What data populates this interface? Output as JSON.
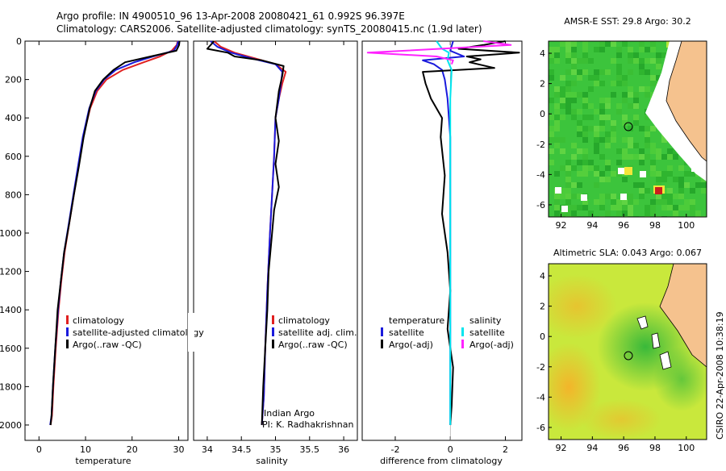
{
  "header": {
    "line1": "Argo profile: IN 4900510_96 13-Apr-2008 20080421_61 0.992S 96.397E",
    "line2": "Climatology: CARS2006. Satellite-adjusted climatology: synTS_20080415.nc (1.9d later)"
  },
  "side_label": "CSIRO 22-Apr-2008 10:38:19",
  "colors": {
    "climatology": "#e02020",
    "satellite": "#1a1adc",
    "argo": "#000000",
    "satellite_diff": "#00e5ee",
    "argo_sal_diff": "#ff22ff",
    "land": "#f5c28e"
  },
  "panels": {
    "temperature": {
      "xlabel": "temperature",
      "legend": [
        "climatology",
        "satellite-adjusted climatology",
        "Argo(..raw -QC)"
      ]
    },
    "salinity": {
      "xlabel": "salinity",
      "legend": [
        "climatology",
        "satellite adj. clim.",
        "Argo(..raw -QC)"
      ],
      "annotation1": "Indian Argo",
      "annotation2": "PI: K. Radhakrishnan"
    },
    "difference": {
      "xlabel": "difference from climatology",
      "legend_temp_title": "temperature",
      "legend_temp": [
        "satellite",
        "Argo(-adj)"
      ],
      "legend_sal_title": "salinity",
      "legend_sal": [
        "satellite",
        "Argo(-adj)"
      ]
    },
    "sst_map": {
      "title": "AMSR-E SST: 29.8 Argo: 30.2"
    },
    "sla_map": {
      "title": "Altimetric SLA: 0.043 Argo: 0.067"
    }
  },
  "chart_data": [
    {
      "type": "line",
      "name": "temperature-profile",
      "xlabel": "temperature",
      "ylabel": "",
      "xlim": [
        -3,
        32
      ],
      "ylim": [
        2080,
        0
      ],
      "xticks": [
        0,
        10,
        20,
        30
      ],
      "yticks": [
        0,
        200,
        400,
        600,
        800,
        1000,
        1200,
        1400,
        1600,
        1800,
        2000
      ],
      "series": [
        {
          "name": "climatology",
          "color": "#e02020",
          "x": [
            29.8,
            29.6,
            28.5,
            26.0,
            22.5,
            18.0,
            14.5,
            12.5,
            11.0,
            9.5,
            8.5,
            7.5,
            6.5,
            5.5,
            4.8,
            4.2,
            3.6,
            3.1,
            2.8,
            2.5
          ],
          "y": [
            0,
            20,
            50,
            80,
            110,
            150,
            200,
            260,
            350,
            500,
            650,
            800,
            950,
            1100,
            1250,
            1400,
            1600,
            1800,
            1950,
            2000
          ]
        },
        {
          "name": "satellite-adjusted climatology",
          "color": "#1a1adc",
          "x": [
            29.9,
            29.7,
            29.0,
            24.5,
            20.5,
            16.5,
            14.0,
            12.2,
            10.8,
            9.4,
            8.4,
            7.4,
            6.4,
            5.4,
            4.7,
            4.1,
            3.5,
            3.0,
            2.7,
            2.4
          ],
          "y": [
            0,
            20,
            50,
            80,
            110,
            150,
            200,
            260,
            350,
            500,
            650,
            800,
            950,
            1100,
            1250,
            1400,
            1600,
            1800,
            1950,
            2000
          ]
        },
        {
          "name": "Argo(..raw -QC)",
          "color": "#000000",
          "x": [
            30.2,
            30.1,
            29.5,
            24.0,
            18.5,
            16.0,
            13.8,
            12.0,
            10.9,
            9.6,
            8.6,
            7.5,
            6.5,
            5.4,
            4.7,
            4.0,
            3.5,
            3.0,
            2.7,
            2.5
          ],
          "y": [
            0,
            20,
            50,
            80,
            110,
            150,
            200,
            260,
            350,
            500,
            650,
            800,
            950,
            1100,
            1250,
            1400,
            1600,
            1800,
            1950,
            2000
          ]
        }
      ]
    },
    {
      "type": "line",
      "name": "salinity-profile",
      "xlabel": "salinity",
      "ylabel": "",
      "xlim": [
        33.8,
        36.2
      ],
      "ylim": [
        2080,
        0
      ],
      "xticks": [
        34,
        34.5,
        35,
        35.5,
        36
      ],
      "series": [
        {
          "name": "climatology",
          "color": "#e02020",
          "x": [
            34.1,
            34.2,
            34.4,
            34.7,
            35.0,
            35.15,
            35.1,
            35.05,
            35.0,
            34.98,
            34.95,
            34.92,
            34.88,
            34.85,
            34.83,
            34.8
          ],
          "y": [
            0,
            30,
            60,
            90,
            120,
            160,
            220,
            300,
            400,
            600,
            800,
            1000,
            1300,
            1600,
            1850,
            2000
          ]
        },
        {
          "name": "satellite adj. clim.",
          "color": "#1a1adc",
          "x": [
            34.05,
            34.15,
            34.35,
            34.65,
            35.0,
            35.1,
            35.08,
            35.05,
            35.0,
            34.98,
            34.95,
            34.92,
            34.88,
            34.85,
            34.83,
            34.8
          ],
          "y": [
            0,
            30,
            60,
            90,
            120,
            160,
            220,
            300,
            400,
            600,
            800,
            1000,
            1300,
            1600,
            1850,
            2000
          ]
        },
        {
          "name": "Argo(..raw -QC)",
          "color": "#000000",
          "x": [
            34.1,
            34.0,
            34.3,
            34.4,
            34.8,
            35.12,
            35.1,
            35.05,
            35.0,
            35.05,
            35.0,
            35.05,
            34.98,
            34.95,
            34.9,
            34.88,
            34.85,
            34.82,
            34.8
          ],
          "y": [
            0,
            40,
            60,
            80,
            100,
            130,
            180,
            260,
            400,
            520,
            640,
            760,
            880,
            1000,
            1200,
            1400,
            1600,
            1800,
            2000
          ]
        }
      ]
    },
    {
      "type": "line",
      "name": "difference-profile",
      "xlabel": "difference from climatology",
      "ylabel": "",
      "xlim": [
        -3.2,
        2.6
      ],
      "ylim": [
        2080,
        0
      ],
      "xticks": [
        -2,
        0,
        2
      ],
      "series": [
        {
          "name": "temperature satellite",
          "color": "#1a1adc",
          "x": [
            0.1,
            0.0,
            0.5,
            -1.0,
            -0.6,
            -0.3,
            -0.2,
            -0.1,
            0.0,
            0.0,
            0.0,
            0.0
          ],
          "y": [
            0,
            50,
            80,
            100,
            120,
            150,
            200,
            300,
            500,
            800,
            1200,
            2000
          ]
        },
        {
          "name": "temperature Argo(-adj)",
          "color": "#000000",
          "x": [
            2.0,
            1.2,
            0.3,
            2.5,
            0.6,
            1.1,
            0.7,
            1.6,
            -1.0,
            -0.9,
            -0.7,
            -0.3,
            -0.35,
            -0.2,
            -0.3,
            -0.1,
            0.0,
            -0.1,
            0.1,
            0.05,
            0.0
          ],
          "y": [
            0,
            20,
            40,
            60,
            80,
            95,
            110,
            140,
            160,
            220,
            300,
            400,
            500,
            700,
            900,
            1100,
            1300,
            1500,
            1700,
            1900,
            2000
          ]
        },
        {
          "name": "salinity satellite",
          "color": "#00e5ee",
          "x": [
            -0.5,
            -0.3,
            -0.05,
            -0.1,
            0.05,
            0.0,
            0.0,
            0.0,
            0.0,
            0.0
          ],
          "y": [
            0,
            40,
            60,
            100,
            150,
            300,
            600,
            1000,
            1500,
            2000
          ]
        },
        {
          "name": "salinity Argo(-adj)",
          "color": "#ff22ff",
          "x": [
            1.2,
            2.2,
            -3.0,
            -0.5,
            0.1,
            0.05
          ],
          "y": [
            0,
            20,
            60,
            80,
            100,
            120
          ]
        }
      ]
    },
    {
      "type": "heatmap",
      "name": "AMSR-E SST map",
      "title": "AMSR-E SST: 29.8 Argo: 30.2",
      "xlim": [
        91.2,
        101.3
      ],
      "ylim": [
        -6.8,
        4.8
      ],
      "xticks": [
        92,
        94,
        96,
        98,
        100
      ],
      "yticks": [
        4,
        2,
        0,
        -2,
        -4,
        -6
      ],
      "argo_position": [
        96.397,
        -0.992
      ]
    },
    {
      "type": "heatmap",
      "name": "Altimetric SLA map",
      "title": "Altimetric SLA: 0.043 Argo: 0.067",
      "xlim": [
        91.2,
        101.3
      ],
      "ylim": [
        -6.8,
        4.8
      ],
      "xticks": [
        92,
        94,
        96,
        98,
        100
      ],
      "yticks": [
        4,
        2,
        0,
        -2,
        -4,
        -6
      ],
      "argo_position": [
        96.397,
        -0.992
      ]
    }
  ]
}
